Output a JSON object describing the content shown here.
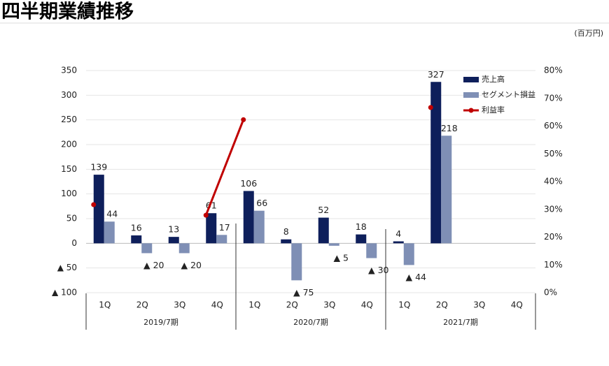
{
  "chart_data": {
    "type": "bar",
    "title": "四半期業績推移",
    "unit_label": "(百万円)",
    "categories": [
      "1Q",
      "2Q",
      "3Q",
      "4Q",
      "1Q",
      "2Q",
      "3Q",
      "4Q",
      "1Q",
      "2Q",
      "3Q",
      "4Q"
    ],
    "groups": [
      "2019/7期",
      "2020/7期",
      "2021/7期"
    ],
    "series": [
      {
        "name": "売上高",
        "color": "#0e1f5b",
        "type": "bar",
        "values": [
          139,
          16,
          13,
          61,
          106,
          8,
          52,
          18,
          4,
          327,
          null,
          null
        ]
      },
      {
        "name": "セグメント損益",
        "color": "#7f8fb5",
        "type": "bar",
        "values": [
          44,
          -20,
          -20,
          17,
          66,
          -75,
          -5,
          -30,
          -44,
          218,
          null,
          null
        ],
        "value_labels": [
          "44",
          "▲ 20",
          "▲ 20",
          "17",
          "66",
          "▲ 75",
          "▲ 5",
          "▲ 30",
          "▲ 44",
          "218",
          null,
          null
        ]
      },
      {
        "name": "利益率",
        "color": "#c00000",
        "type": "line",
        "axis": "y2",
        "values": [
          31.7,
          null,
          null,
          27.9,
          62.3,
          null,
          null,
          null,
          null,
          66.7,
          null,
          null
        ]
      }
    ],
    "ylim": [
      -100,
      350
    ],
    "yticks": [
      {
        "value": -100,
        "label": "▲ 100"
      },
      {
        "value": -50,
        "label": "▲ 50"
      },
      0,
      50,
      100,
      150,
      200,
      250,
      300,
      350
    ],
    "y2lim": [
      0,
      80
    ],
    "y2ticks": [
      {
        "value": 0,
        "label": "0%"
      },
      {
        "value": 10,
        "label": "10%"
      },
      {
        "value": 20,
        "label": "20%"
      },
      {
        "value": 30,
        "label": "30%"
      },
      {
        "value": 40,
        "label": "40%"
      },
      {
        "value": 50,
        "label": "50%"
      },
      {
        "value": 60,
        "label": "60%"
      },
      {
        "value": 70,
        "label": "70%"
      },
      {
        "value": 80,
        "label": "80%"
      }
    ],
    "grid": true
  }
}
